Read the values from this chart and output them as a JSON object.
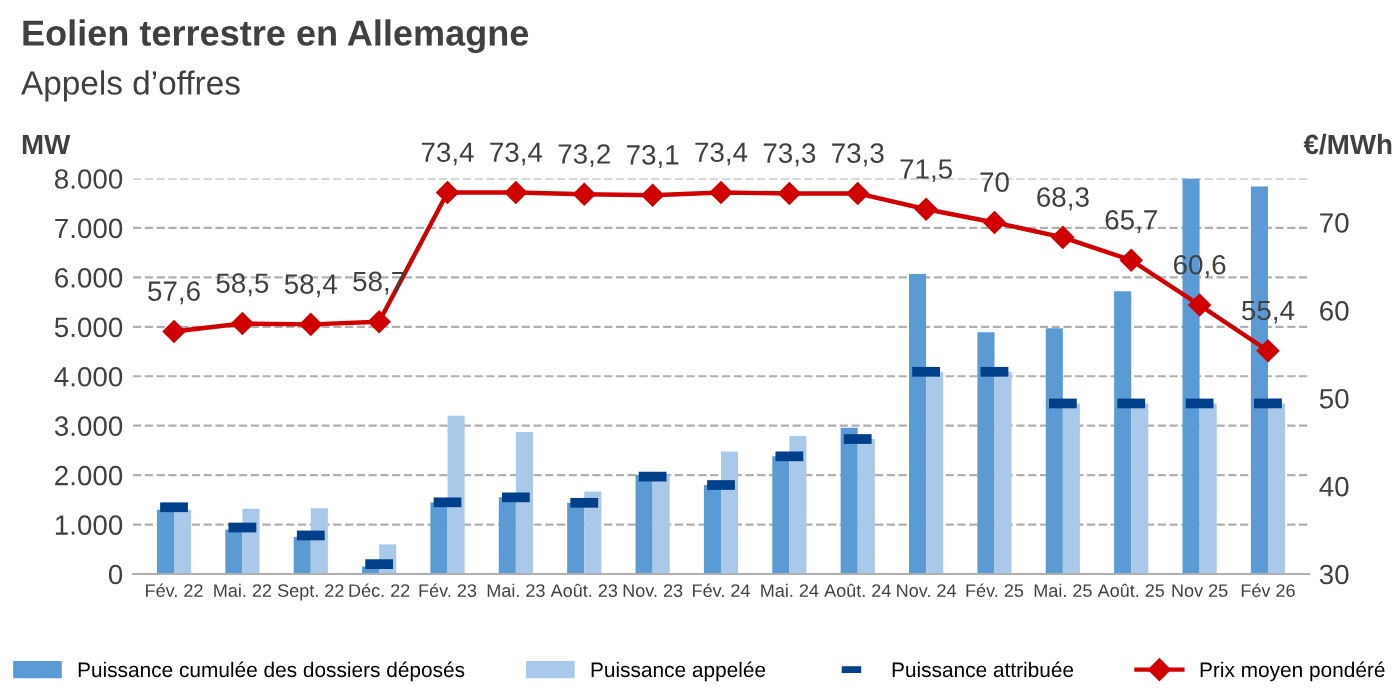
{
  "chart_data": {
    "type": "bar",
    "title": "Eolien terrestre en Allemagne",
    "subtitle": "Appels d’offres",
    "ylabel": "MW",
    "y2label": "€/MWh",
    "categories": [
      "Fév. 22",
      "Mai. 22",
      "Sept. 22",
      "Déc. 22",
      "Fév. 23",
      "Mai. 23",
      "Août. 23",
      "Nov. 23",
      "Fév. 24",
      "Mai. 24",
      "Août. 24",
      "Nov. 24",
      "Fév. 25",
      "Mai. 25",
      "Août. 25",
      "Nov 25",
      "Fév 26"
    ],
    "series": [
      {
        "name": "Puissance cumulée des dossiers déposés",
        "color": "#5b9bd5",
        "values": [
          1300,
          900,
          750,
          150,
          1450,
          1550,
          1440,
          2000,
          1800,
          2380,
          2960,
          6070,
          4890,
          4970,
          5720,
          8000,
          7840
        ]
      },
      {
        "name": "Puissance appelée",
        "color": "#a9c9ea",
        "values": [
          1300,
          1320,
          1330,
          600,
          3200,
          2870,
          1670,
          2000,
          2480,
          2790,
          2730,
          4090,
          4090,
          3450,
          3450,
          3450,
          3450
        ]
      },
      {
        "name": "Puissance attribuée",
        "type": "scatter",
        "color": "#003f8a",
        "values": [
          1350,
          940,
          780,
          200,
          1450,
          1550,
          1440,
          1970,
          1800,
          2380,
          2730,
          4090,
          4090,
          3450,
          3450,
          3450,
          3450
        ]
      },
      {
        "name": "Prix moyen pondéré",
        "type": "line",
        "axis": "y2",
        "marker": "diamond",
        "color": "#d00000",
        "values": [
          57.6,
          58.5,
          58.4,
          58.7,
          73.4,
          73.4,
          73.2,
          73.1,
          73.4,
          73.3,
          73.3,
          71.5,
          70,
          68.3,
          65.7,
          60.6,
          55.4
        ],
        "value_labels": [
          "57,6",
          "58,5",
          "58,4",
          "58,7",
          "73,4",
          "73,4",
          "73,2",
          "73,1",
          "73,4",
          "73,3",
          "73,3",
          "71,5",
          "70",
          "68,3",
          "65,7",
          "60,6",
          "55,4"
        ]
      }
    ],
    "ylim": [
      0,
      8000
    ],
    "yticks": [
      {
        "value": 0,
        "label": "0"
      },
      {
        "value": 1000,
        "label": "1.000"
      },
      {
        "value": 2000,
        "label": "2.000"
      },
      {
        "value": 3000,
        "label": "3.000"
      },
      {
        "value": 4000,
        "label": "4.000"
      },
      {
        "value": 5000,
        "label": "5.000"
      },
      {
        "value": 6000,
        "label": "6.000"
      },
      {
        "value": 7000,
        "label": "7.000"
      },
      {
        "value": 8000,
        "label": "8.000"
      }
    ],
    "y2lim": [
      30,
      75
    ],
    "y2ticks": [
      30,
      40,
      50,
      60,
      70
    ],
    "grid": "y",
    "legend": "bottom"
  }
}
